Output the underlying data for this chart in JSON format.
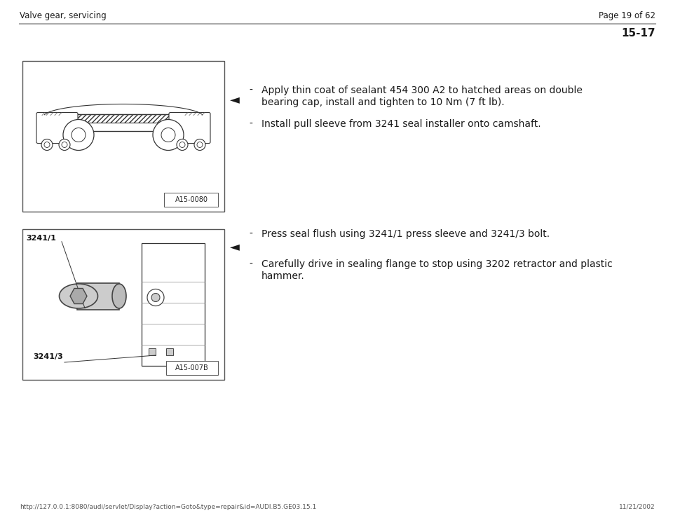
{
  "page_title_left": "Valve gear, servicing",
  "page_title_right": "Page 19 of 62",
  "section_number": "15-17",
  "bg_color": "#ffffff",
  "text_color": "#1a1a1a",
  "footer_url": "http://127.0.0.1:8080/audi/servlet/Display?action=Goto&type=repair&id=AUDI.B5.GE03.15.1",
  "footer_date": "11/21/2002",
  "img1_label": "A15-0080",
  "img2_label": "A15-007B",
  "img2_label2": "3241/1",
  "img2_label3": "3241/3",
  "b1_line1": "Apply thin coat of sealant 454 300 A2 to hatched areas on double",
  "b1_line2": "bearing cap, install and tighten to 10 Nm (7 ft lb).",
  "b1_line3": "Install pull sleeve from 3241 seal installer onto camshaft.",
  "b2_line1": "Press seal flush using 3241/1 press sleeve and 3241/3 bolt.",
  "b2_line2": "Carefully drive in sealing flange to stop using 3202 retractor and plastic",
  "b2_line3": "hammer."
}
